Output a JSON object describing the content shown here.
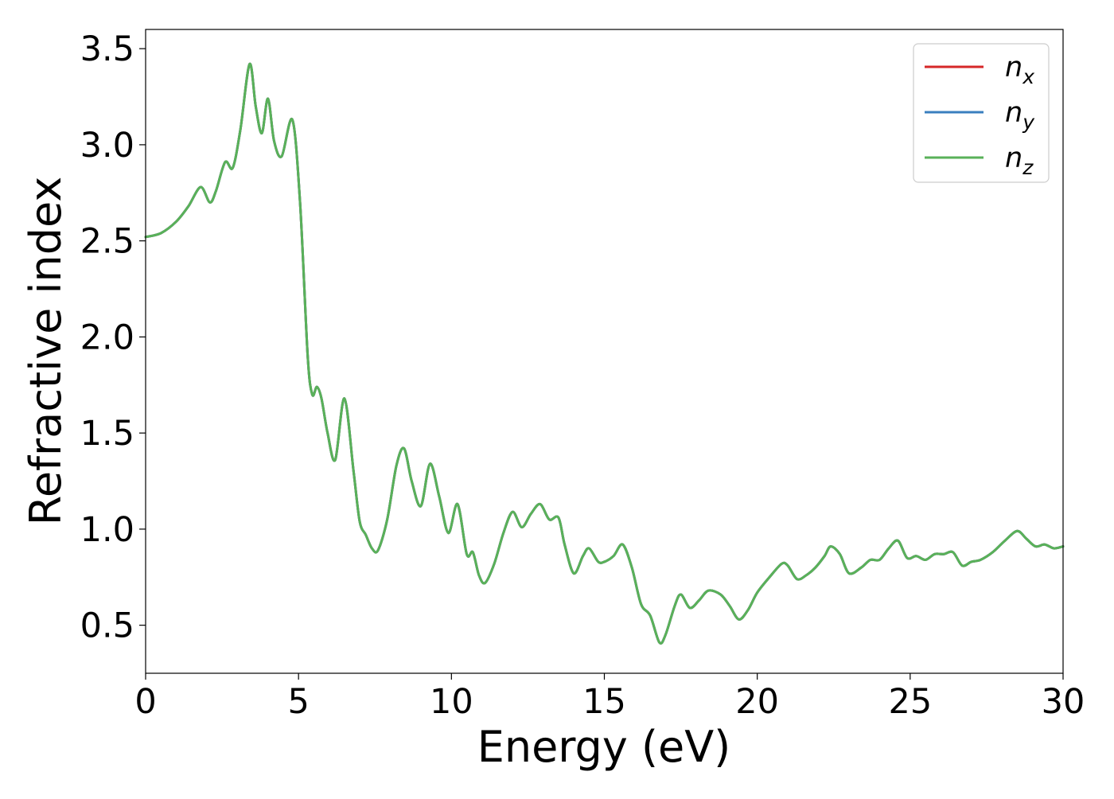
{
  "chart_data": {
    "type": "line",
    "xlabel": "Energy (eV)",
    "ylabel": "Refractive index",
    "xlim": [
      0,
      30
    ],
    "ylim": [
      0.25,
      3.6
    ],
    "xticks": [
      0,
      5,
      10,
      15,
      20,
      25,
      30
    ],
    "xtick_labels": [
      "0",
      "5",
      "10",
      "15",
      "20",
      "25",
      "30"
    ],
    "yticks": [
      0.5,
      1.0,
      1.5,
      2.0,
      2.5,
      3.0,
      3.5
    ],
    "ytick_labels": [
      "0.5",
      "1.0",
      "1.5",
      "2.0",
      "2.5",
      "3.0",
      "3.5"
    ],
    "grid": false,
    "legend_position": "top-right",
    "x": [
      0.0,
      0.5,
      1.0,
      1.4,
      1.8,
      2.1,
      2.3,
      2.6,
      2.85,
      3.1,
      3.4,
      3.6,
      3.8,
      4.0,
      4.2,
      4.45,
      4.8,
      5.05,
      5.3,
      5.45,
      5.6,
      5.75,
      5.95,
      6.2,
      6.5,
      6.8,
      7.0,
      7.2,
      7.4,
      7.6,
      7.9,
      8.2,
      8.45,
      8.7,
      9.0,
      9.3,
      9.6,
      9.9,
      10.2,
      10.5,
      10.7,
      10.9,
      11.1,
      11.4,
      11.7,
      12.0,
      12.3,
      12.6,
      12.9,
      13.2,
      13.5,
      13.7,
      14.0,
      14.3,
      14.5,
      14.8,
      15.0,
      15.3,
      15.6,
      15.9,
      16.2,
      16.5,
      16.8,
      17.0,
      17.3,
      17.5,
      17.8,
      18.1,
      18.4,
      18.8,
      19.1,
      19.4,
      19.7,
      20.0,
      20.4,
      20.8,
      21.0,
      21.3,
      21.6,
      21.9,
      22.2,
      22.4,
      22.7,
      23.0,
      23.4,
      23.7,
      24.0,
      24.3,
      24.6,
      24.9,
      25.2,
      25.5,
      25.8,
      26.1,
      26.4,
      26.7,
      27.0,
      27.3,
      27.7,
      28.1,
      28.5,
      28.8,
      29.1,
      29.4,
      29.7,
      30.0
    ],
    "series": [
      {
        "name": "n_x",
        "values": [
          2.52,
          2.54,
          2.6,
          2.68,
          2.78,
          2.7,
          2.76,
          2.91,
          2.88,
          3.08,
          3.42,
          3.2,
          3.06,
          3.24,
          3.02,
          2.94,
          3.13,
          2.7,
          1.9,
          1.7,
          1.74,
          1.68,
          1.5,
          1.36,
          1.68,
          1.3,
          1.04,
          0.97,
          0.9,
          0.89,
          1.05,
          1.33,
          1.42,
          1.25,
          1.12,
          1.34,
          1.17,
          0.98,
          1.13,
          0.87,
          0.88,
          0.76,
          0.72,
          0.82,
          0.98,
          1.09,
          1.01,
          1.08,
          1.13,
          1.05,
          1.06,
          0.92,
          0.77,
          0.86,
          0.9,
          0.83,
          0.83,
          0.86,
          0.92,
          0.8,
          0.61,
          0.55,
          0.41,
          0.45,
          0.6,
          0.66,
          0.59,
          0.63,
          0.68,
          0.66,
          0.6,
          0.53,
          0.58,
          0.67,
          0.75,
          0.82,
          0.81,
          0.74,
          0.76,
          0.8,
          0.86,
          0.91,
          0.87,
          0.77,
          0.8,
          0.84,
          0.84,
          0.9,
          0.94,
          0.85,
          0.86,
          0.84,
          0.87,
          0.87,
          0.88,
          0.81,
          0.83,
          0.84,
          0.88,
          0.94,
          0.99,
          0.95,
          0.91,
          0.92,
          0.9,
          0.91
        ]
      },
      {
        "name": "n_y",
        "values": [
          2.52,
          2.54,
          2.6,
          2.68,
          2.78,
          2.7,
          2.76,
          2.91,
          2.88,
          3.08,
          3.42,
          3.2,
          3.06,
          3.24,
          3.02,
          2.94,
          3.13,
          2.7,
          1.9,
          1.7,
          1.74,
          1.68,
          1.5,
          1.36,
          1.68,
          1.3,
          1.04,
          0.97,
          0.9,
          0.89,
          1.05,
          1.33,
          1.42,
          1.25,
          1.12,
          1.34,
          1.17,
          0.98,
          1.13,
          0.87,
          0.88,
          0.76,
          0.72,
          0.82,
          0.98,
          1.09,
          1.01,
          1.08,
          1.13,
          1.05,
          1.06,
          0.92,
          0.77,
          0.86,
          0.9,
          0.83,
          0.83,
          0.86,
          0.92,
          0.8,
          0.61,
          0.55,
          0.41,
          0.45,
          0.6,
          0.66,
          0.59,
          0.63,
          0.68,
          0.66,
          0.6,
          0.53,
          0.58,
          0.67,
          0.75,
          0.82,
          0.81,
          0.74,
          0.76,
          0.8,
          0.86,
          0.91,
          0.87,
          0.77,
          0.8,
          0.84,
          0.84,
          0.9,
          0.94,
          0.85,
          0.86,
          0.84,
          0.87,
          0.87,
          0.88,
          0.81,
          0.83,
          0.84,
          0.88,
          0.94,
          0.99,
          0.95,
          0.91,
          0.92,
          0.9,
          0.91
        ]
      },
      {
        "name": "n_z",
        "values": [
          2.52,
          2.54,
          2.6,
          2.68,
          2.78,
          2.7,
          2.76,
          2.91,
          2.88,
          3.08,
          3.42,
          3.2,
          3.06,
          3.24,
          3.02,
          2.94,
          3.13,
          2.7,
          1.9,
          1.7,
          1.74,
          1.68,
          1.5,
          1.36,
          1.68,
          1.3,
          1.04,
          0.97,
          0.9,
          0.89,
          1.05,
          1.33,
          1.42,
          1.25,
          1.12,
          1.34,
          1.17,
          0.98,
          1.13,
          0.87,
          0.88,
          0.76,
          0.72,
          0.82,
          0.98,
          1.09,
          1.01,
          1.08,
          1.13,
          1.05,
          1.06,
          0.92,
          0.77,
          0.86,
          0.9,
          0.83,
          0.83,
          0.86,
          0.92,
          0.8,
          0.61,
          0.55,
          0.41,
          0.45,
          0.6,
          0.66,
          0.59,
          0.63,
          0.68,
          0.66,
          0.6,
          0.53,
          0.58,
          0.67,
          0.75,
          0.82,
          0.81,
          0.74,
          0.76,
          0.8,
          0.86,
          0.91,
          0.87,
          0.77,
          0.8,
          0.84,
          0.84,
          0.9,
          0.94,
          0.85,
          0.86,
          0.84,
          0.87,
          0.87,
          0.88,
          0.81,
          0.83,
          0.84,
          0.88,
          0.94,
          0.99,
          0.95,
          0.91,
          0.92,
          0.9,
          0.91
        ]
      }
    ],
    "legend": [
      {
        "base": "n",
        "sub": "x",
        "color": "#d62728"
      },
      {
        "base": "n",
        "sub": "y",
        "color": "#3a7fbf"
      },
      {
        "base": "n",
        "sub": "z",
        "color": "#59b159"
      }
    ],
    "colors": {
      "n_x": "#d62728",
      "n_y": "#3a7fbf",
      "n_z": "#59b159"
    }
  }
}
